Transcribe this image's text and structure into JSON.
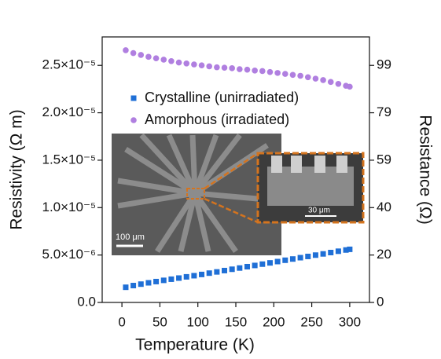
{
  "chart_data": {
    "type": "scatter",
    "xlabel": "Temperature (K)",
    "ylabel": "Resistivity (Ω m)",
    "y2label": "Resistance (Ω)",
    "xlim": [
      -26,
      326
    ],
    "xticks": [
      0,
      50,
      100,
      150,
      200,
      250,
      300
    ],
    "ylim": [
      0,
      2.8e-05
    ],
    "yticks": [
      {
        "value": 0,
        "label": "0.0"
      },
      {
        "value": 5e-06,
        "label": "5.0×10⁻⁶"
      },
      {
        "value": 1e-05,
        "label": "1.0×10⁻⁵"
      },
      {
        "value": 1.5e-05,
        "label": "1.5×10⁻⁵"
      },
      {
        "value": 2e-05,
        "label": "2.0×10⁻⁵"
      },
      {
        "value": 2.5e-05,
        "label": "2.5×10⁻⁵"
      }
    ],
    "y2lim": [
      0,
      110.88
    ],
    "y2ticks": [
      0,
      {
        "value": 19.8,
        "label": "20"
      },
      {
        "value": 39.6,
        "label": "40"
      },
      {
        "value": 59.4,
        "label": "59"
      },
      {
        "value": 79.2,
        "label": "79"
      },
      99
    ],
    "x": [
      5,
      15,
      25,
      35,
      45,
      55,
      65,
      75,
      85,
      95,
      105,
      115,
      125,
      135,
      145,
      155,
      165,
      175,
      185,
      195,
      205,
      215,
      225,
      235,
      245,
      255,
      265,
      275,
      285,
      295,
      300
    ],
    "series": [
      {
        "name": "Crystalline (unirradiated)",
        "color": "#1f6fd6",
        "marker": "square",
        "values": [
          1.6e-06,
          1.78e-06,
          1.93e-06,
          2.07e-06,
          2.2e-06,
          2.33e-06,
          2.45e-06,
          2.57e-06,
          2.7e-06,
          2.82e-06,
          2.95e-06,
          3.09e-06,
          3.22e-06,
          3.36e-06,
          3.5e-06,
          3.63e-06,
          3.77e-06,
          3.9e-06,
          4.04e-06,
          4.17e-06,
          4.31e-06,
          4.45e-06,
          4.58e-06,
          4.72e-06,
          4.85e-06,
          4.99e-06,
          5.12e-06,
          5.26e-06,
          5.4e-06,
          5.53e-06,
          5.6e-06
        ]
      },
      {
        "name": "Amorphous (irradiated)",
        "color": "#b07fe0",
        "marker": "circle",
        "values": [
          2.66e-05,
          2.63e-05,
          2.61e-05,
          2.59e-05,
          2.575e-05,
          2.56e-05,
          2.545e-05,
          2.53e-05,
          2.52e-05,
          2.51e-05,
          2.5e-05,
          2.49e-05,
          2.48e-05,
          2.475e-05,
          2.47e-05,
          2.46e-05,
          2.455e-05,
          2.445e-05,
          2.44e-05,
          2.43e-05,
          2.42e-05,
          2.41e-05,
          2.4e-05,
          2.39e-05,
          2.375e-05,
          2.36e-05,
          2.345e-05,
          2.325e-05,
          2.305e-05,
          2.285e-05,
          2.275e-05
        ]
      }
    ],
    "annotations": [
      "100 μm",
      "30 μm"
    ]
  }
}
